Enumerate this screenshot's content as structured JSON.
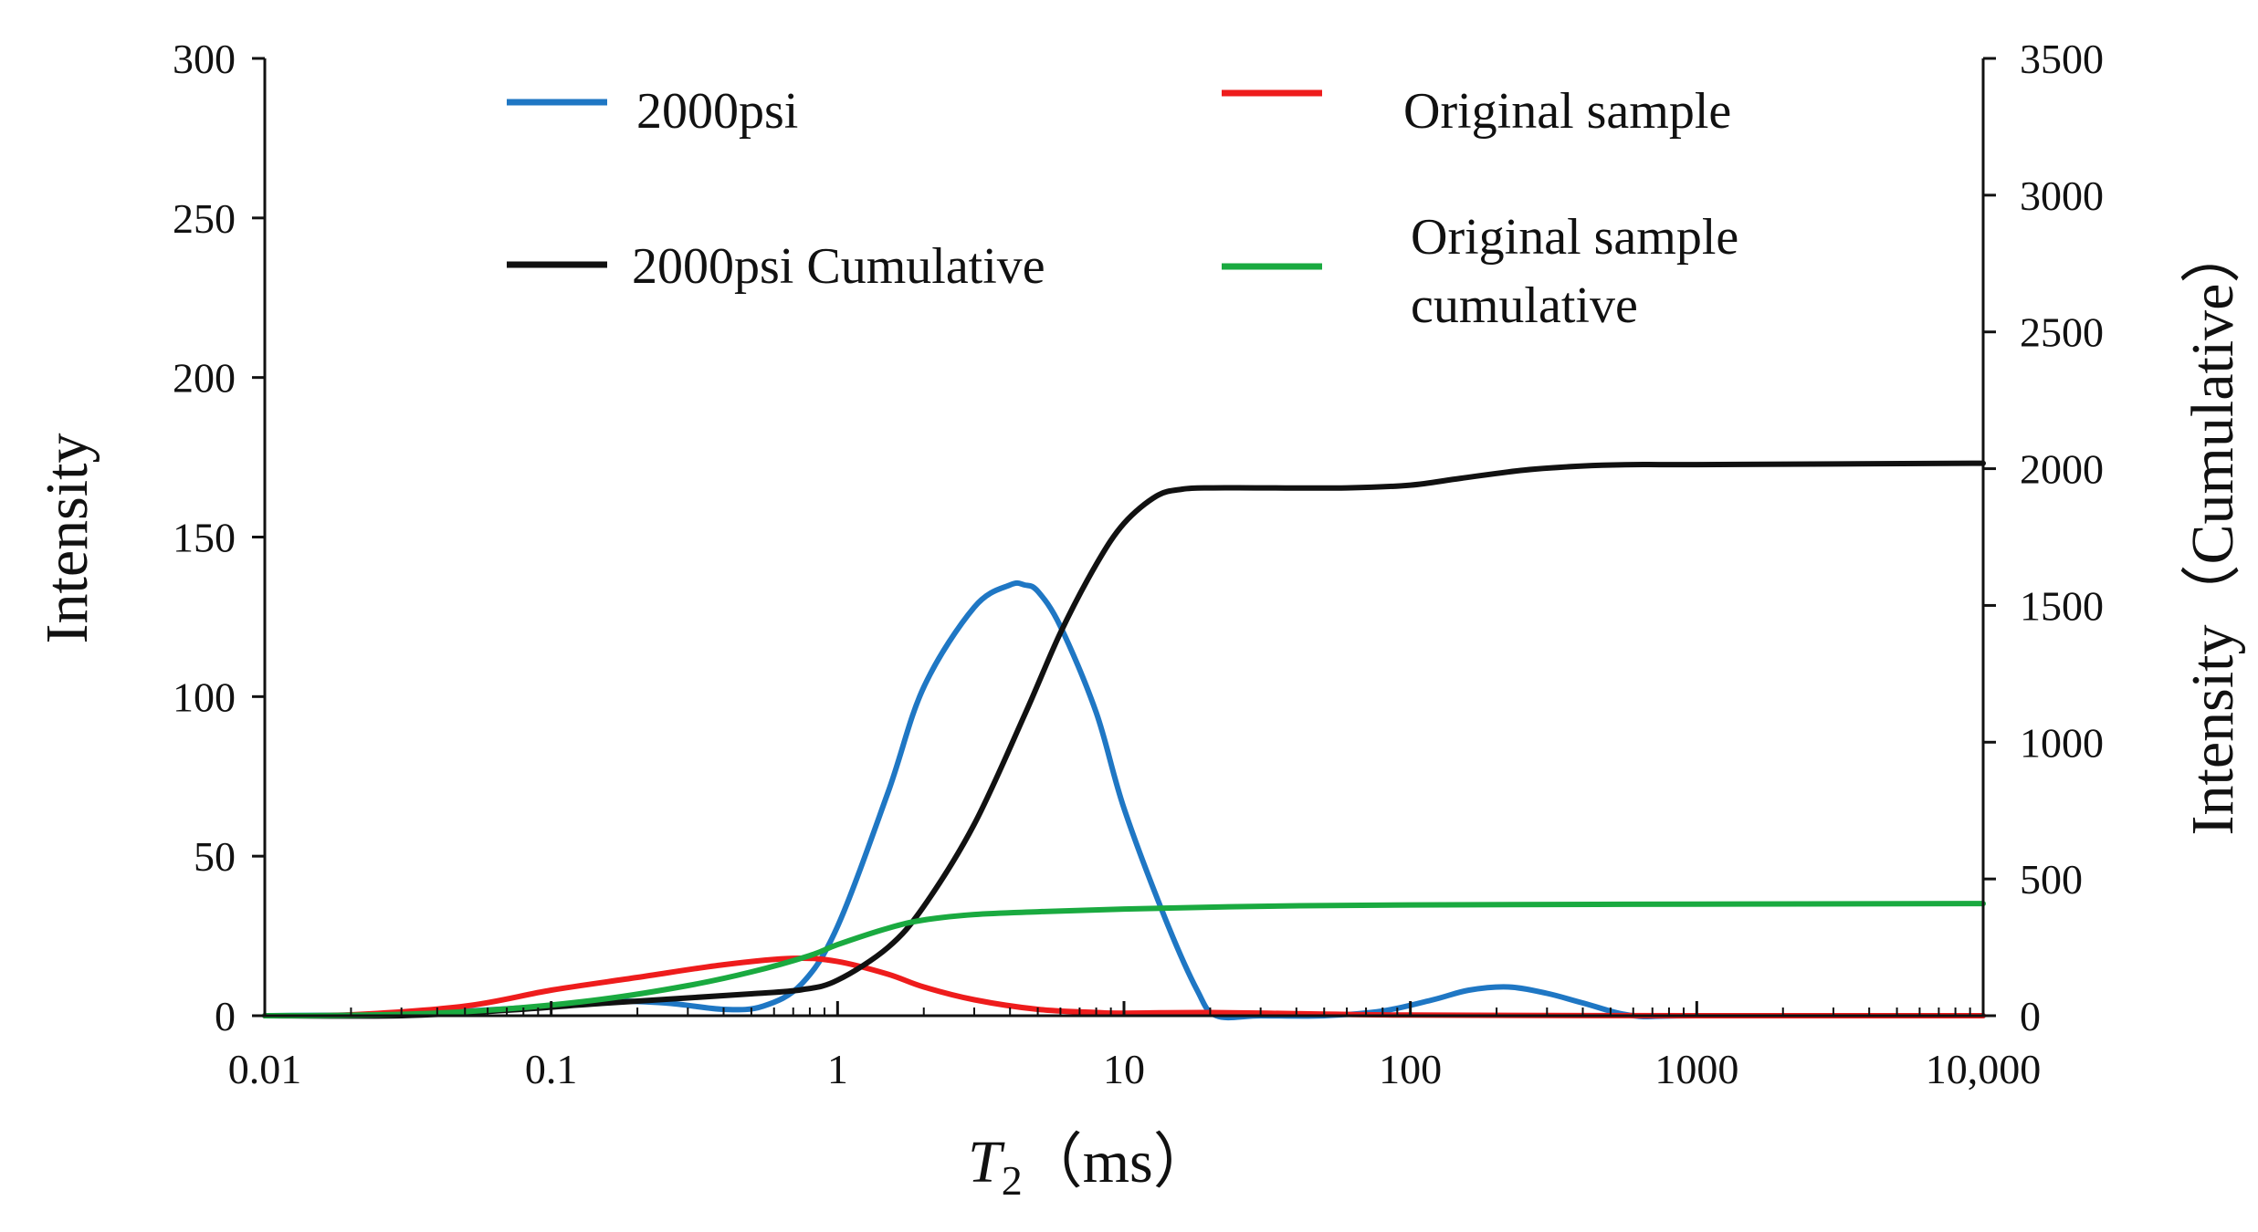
{
  "chart_data": {
    "type": "line",
    "title": "",
    "xlabel": "T2（ms）",
    "xlabel_main": "T",
    "xlabel_sub": "2",
    "xlabel_unit": "（ms）",
    "ylabel": "Intensity",
    "y2label": "Intensity（Cumulative）",
    "xscale": "log",
    "xlim": [
      0.01,
      10000
    ],
    "ylim": [
      0,
      300
    ],
    "y2lim": [
      0,
      3500
    ],
    "xticks": [
      0.01,
      0.1,
      1,
      10,
      100,
      1000,
      10000
    ],
    "xtick_labels": [
      "0.01",
      "0.1",
      "1",
      "10",
      "100",
      "1000",
      "10,000"
    ],
    "yticks": [
      0,
      50,
      100,
      150,
      200,
      250,
      300
    ],
    "ytick_labels": [
      "0",
      "50",
      "100",
      "150",
      "200",
      "250",
      "300"
    ],
    "y2ticks": [
      0,
      500,
      1000,
      1500,
      2000,
      2500,
      3000,
      3500
    ],
    "y2tick_labels": [
      "0",
      "500",
      "1000",
      "1500",
      "2000",
      "2500",
      "3000",
      "3500"
    ],
    "legend_position": "top",
    "series": [
      {
        "name": "2000psi",
        "axis": "left",
        "color": "#1f77c4",
        "x": [
          0.01,
          0.03,
          0.08,
          0.15,
          0.25,
          0.4,
          0.55,
          0.75,
          1,
          1.5,
          2,
          3,
          4,
          4.5,
          5,
          6,
          8,
          10,
          14,
          18,
          21,
          30,
          50,
          80,
          120,
          160,
          220,
          300,
          400,
          600,
          1000,
          10000
        ],
        "values": [
          0,
          0.5,
          2.5,
          4.5,
          4,
          2,
          3,
          10,
          28,
          70,
          103,
          128,
          135,
          135,
          133,
          122,
          95,
          65,
          30,
          8,
          0,
          0,
          0,
          1.5,
          5,
          8,
          9,
          7,
          4,
          0,
          0,
          0
        ]
      },
      {
        "name": "Original sample",
        "axis": "left",
        "color": "#ee1c1c",
        "x": [
          0.01,
          0.02,
          0.05,
          0.1,
          0.2,
          0.4,
          0.7,
          1,
          1.5,
          2,
          3,
          5,
          8,
          10,
          20,
          50,
          100,
          1000,
          10000
        ],
        "values": [
          0,
          0.3,
          3,
          8,
          12,
          16,
          18,
          17,
          13,
          9,
          5,
          2,
          1,
          0.8,
          1,
          0.5,
          0.2,
          0,
          0
        ]
      },
      {
        "name": "2000psi Cumulative",
        "axis": "right",
        "color": "#111111",
        "x": [
          0.01,
          0.03,
          0.07,
          0.15,
          0.3,
          0.5,
          0.75,
          1,
          1.5,
          2,
          3,
          4.5,
          6,
          8,
          10,
          13,
          16,
          20,
          30,
          60,
          100,
          150,
          250,
          400,
          600,
          1000,
          10000
        ],
        "values": [
          0,
          0,
          20,
          45,
          65,
          80,
          95,
          130,
          250,
          400,
          700,
          1100,
          1400,
          1650,
          1800,
          1900,
          1925,
          1930,
          1930,
          1930,
          1940,
          1965,
          1995,
          2010,
          2015,
          2015,
          2020
        ]
      },
      {
        "name": "Original sample\ncumulative",
        "axis": "right",
        "color": "#1aaa40",
        "x": [
          0.01,
          0.03,
          0.07,
          0.15,
          0.3,
          0.5,
          0.8,
          1,
          1.5,
          2,
          3,
          5,
          10,
          30,
          100,
          1000,
          10000
        ],
        "values": [
          0,
          5,
          25,
          60,
          110,
          160,
          220,
          260,
          320,
          350,
          370,
          380,
          390,
          400,
          405,
          408,
          410
        ]
      }
    ]
  }
}
